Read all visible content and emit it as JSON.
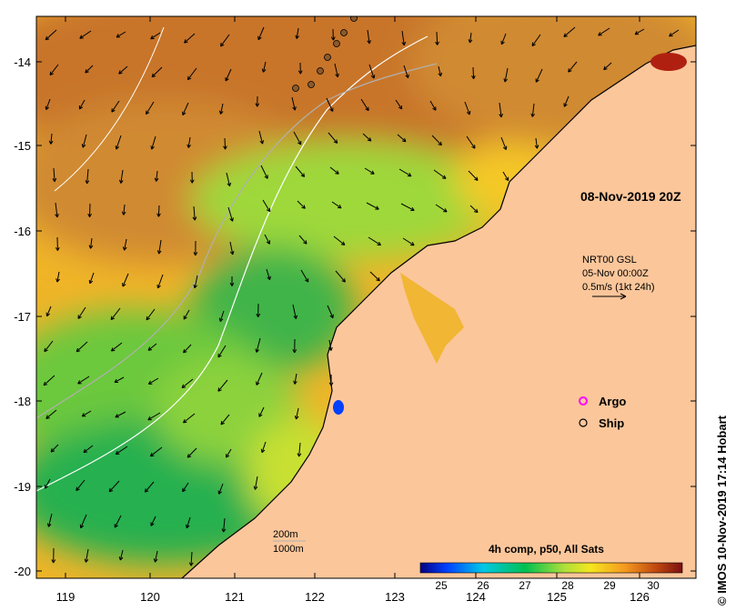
{
  "map": {
    "date_label": "08-Nov-2019 20Z",
    "x_ticks": [
      "119",
      "120",
      "121",
      "122",
      "123",
      "124",
      "125",
      "126"
    ],
    "y_ticks": [
      "-14",
      "-15",
      "-16",
      "-17",
      "-18",
      "-19",
      "-20"
    ],
    "current_info": {
      "line1": "NRT00 GSL",
      "line2": "05-Nov 00:00Z",
      "line3": "0.5m/s (1kt 24h)"
    },
    "legend": {
      "argo_label": "Argo",
      "ship_label": "Ship",
      "argo_color": "#ff00ff"
    },
    "depth_legend": {
      "line1": "200m",
      "line2": "1000m"
    },
    "colorbar": {
      "title": "4h comp, p50, All Sats",
      "ticks": [
        "25",
        "26",
        "27",
        "28",
        "29",
        "30"
      ],
      "stops": [
        "#000080",
        "#0040ff",
        "#00c8e6",
        "#00c050",
        "#aee03a",
        "#f5e61e",
        "#f59a1e",
        "#c04810",
        "#7a1010"
      ]
    },
    "credit": "© IMOS 10-Nov-2019 17:14 Hobart",
    "colors": {
      "land": "#fbc69a",
      "sea_warm": "#c87830",
      "sea_mid": "#f0c030",
      "sea_cool": "#30b040"
    }
  }
}
